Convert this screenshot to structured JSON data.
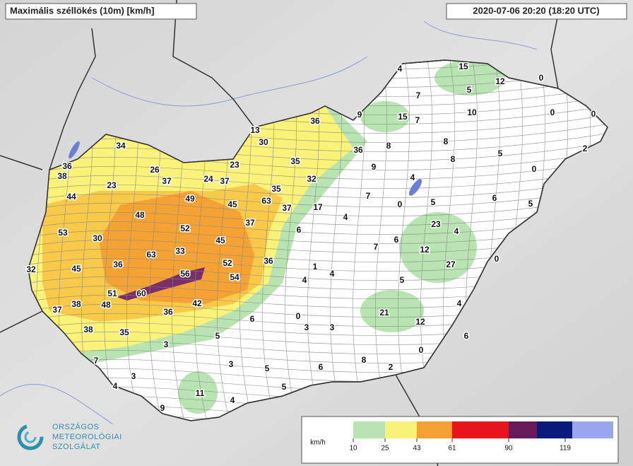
{
  "header": {
    "title": "Maximális széllökés (10m) [km/h]",
    "time": "2020-07-06 20:20 (18:20 UTC)"
  },
  "stations": [
    4,
    15,
    12,
    0,
    7,
    5,
    15,
    7,
    9,
    10,
    0,
    0,
    36,
    13,
    30,
    8,
    8,
    36,
    2,
    5,
    34,
    35,
    8,
    0,
    36,
    38,
    26,
    23,
    9,
    4,
    37,
    24,
    37,
    32,
    23,
    35,
    7,
    6,
    44,
    49,
    63,
    45,
    37,
    17,
    0,
    5,
    5,
    48,
    4,
    37,
    52,
    23,
    4,
    6,
    53,
    30,
    45,
    7,
    6,
    12,
    33,
    63,
    0,
    36,
    36,
    52,
    27,
    45,
    32,
    1,
    56,
    54,
    4,
    4,
    5,
    51,
    60,
    4,
    38,
    48,
    42,
    36,
    37,
    21,
    12,
    0,
    6,
    38,
    35,
    3,
    3,
    5,
    6,
    3,
    0,
    7,
    8,
    3,
    5,
    6,
    2,
    3,
    4,
    11,
    5,
    4,
    9
  ],
  "legend": {
    "unit": "km/h",
    "ticks": [
      10,
      25,
      43,
      61,
      90,
      119
    ]
  },
  "logo": {
    "line1": "ORSZÁGOS",
    "line2": "METEOROLÓGIAI",
    "line3": "SZOLGÁLAT"
  }
}
